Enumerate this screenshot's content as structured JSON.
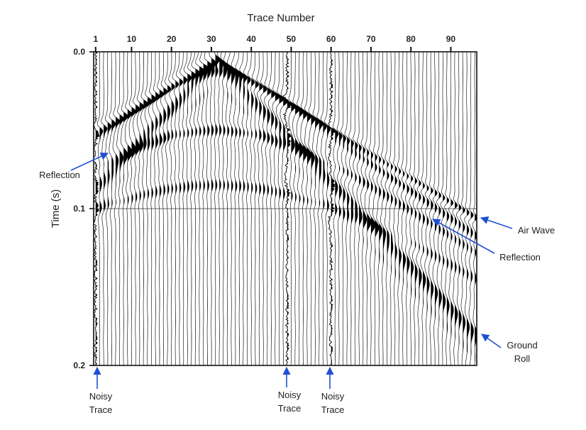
{
  "figure": {
    "x_axis_title": "Trace Number",
    "y_axis_title": "Time (s)",
    "x_ticks": [
      1,
      10,
      20,
      30,
      40,
      50,
      60,
      70,
      80,
      90
    ],
    "y_ticks": [
      {
        "value": 0.0,
        "label": "0.0"
      },
      {
        "value": 0.1,
        "label": "0.1"
      },
      {
        "value": 0.2,
        "label": "0.2"
      }
    ],
    "trace_count": 96,
    "time_range_s": [
      0,
      0.2
    ],
    "grid_line_time_s": 0.1,
    "annotation_color": "#1f4fd6"
  },
  "events": {
    "shot_trace": 31,
    "shot_time_s": 0.005,
    "air_wave": {
      "label": "Air Wave",
      "slope_s_per_trace": 0.00155
    },
    "ground_roll": {
      "label": "Ground Roll",
      "slope_s_per_trace": 0.0027
    },
    "reflections": [
      {
        "t0_s": 0.012
      },
      {
        "t0_s": 0.05
      },
      {
        "t0_s": 0.085
      }
    ]
  },
  "noisy_traces": [
    1,
    49,
    60
  ],
  "annotations": [
    {
      "name": "annotation-reflection-left",
      "text": [
        "Reflection"
      ]
    },
    {
      "name": "annotation-air-wave",
      "text": [
        "Air Wave"
      ]
    },
    {
      "name": "annotation-reflection-right",
      "text": [
        "Reflection"
      ]
    },
    {
      "name": "annotation-ground-roll",
      "text": [
        "Ground",
        "Roll"
      ]
    },
    {
      "name": "annotation-noisy-trace-1",
      "text": [
        "Noisy",
        "Trace"
      ]
    },
    {
      "name": "annotation-noisy-trace-49",
      "text": [
        "Noisy",
        "Trace"
      ]
    },
    {
      "name": "annotation-noisy-trace-60",
      "text": [
        "Noisy",
        "Trace"
      ]
    }
  ]
}
